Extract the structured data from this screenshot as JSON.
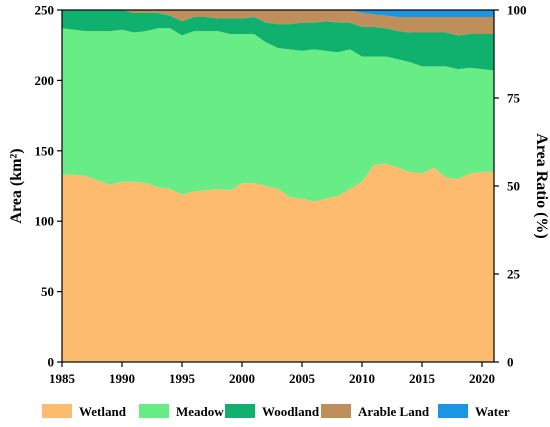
{
  "chart_data": {
    "type": "area",
    "stacked": true,
    "x": [
      1985,
      1986,
      1987,
      1988,
      1989,
      1990,
      1991,
      1992,
      1993,
      1994,
      1995,
      1996,
      1997,
      1998,
      1999,
      2000,
      2001,
      2002,
      2003,
      2004,
      2005,
      2006,
      2007,
      2008,
      2009,
      2010,
      2011,
      2012,
      2013,
      2014,
      2015,
      2016,
      2017,
      2018,
      2019,
      2020,
      2021
    ],
    "x_ticks": [
      "1985",
      "1990",
      "1995",
      "2000",
      "2005",
      "2010",
      "2015",
      "2020"
    ],
    "y_left_ticks": [
      "0",
      "50",
      "100",
      "150",
      "200",
      "250"
    ],
    "y_right_ticks": [
      "0",
      "25",
      "50",
      "75",
      "100"
    ],
    "ylabel_left": "Area (km²)",
    "ylabel_right": "Area Ratio (%)",
    "ylim_left": [
      0,
      250
    ],
    "ylim_right": [
      0,
      100
    ],
    "xlim": [
      1985,
      2021
    ],
    "legend_position": "bottom",
    "series": [
      {
        "name": "Wetland",
        "color": "#FDBB6F",
        "values": [
          133,
          133,
          132,
          129,
          126,
          128,
          128,
          127,
          124,
          123,
          119,
          121,
          122,
          123,
          122,
          127,
          127,
          125,
          123,
          117,
          116,
          114,
          116,
          118,
          123,
          128,
          140,
          141,
          138,
          135,
          134,
          138,
          131,
          130,
          134,
          135,
          135
        ]
      },
      {
        "name": "Meadow",
        "color": "#68EC86",
        "values": [
          104,
          103,
          103,
          106,
          109,
          108,
          106,
          108,
          113,
          114,
          113,
          114,
          113,
          112,
          111,
          106,
          106,
          102,
          100,
          105,
          105,
          108,
          105,
          102,
          99,
          89,
          77,
          76,
          77,
          78,
          76,
          72,
          79,
          78,
          75,
          73,
          72
        ]
      },
      {
        "name": "Woodland",
        "color": "#10B16E",
        "values": [
          13,
          14,
          15,
          15,
          15,
          14,
          14,
          13,
          11,
          9,
          10,
          10,
          10,
          9,
          11,
          11,
          12,
          14,
          17,
          18,
          20,
          19,
          21,
          21,
          19,
          21,
          21,
          20,
          20,
          21,
          24,
          24,
          24,
          24,
          24,
          25,
          26
        ]
      },
      {
        "name": "Arable Land",
        "color": "#BE8F5B",
        "values": [
          0,
          0,
          0,
          0,
          0,
          0,
          2,
          2,
          2,
          4,
          8,
          5,
          5,
          6,
          6,
          6,
          5,
          9,
          10,
          10,
          9,
          9,
          8,
          9,
          9,
          10,
          9,
          9,
          10,
          11,
          11,
          11,
          11,
          13,
          12,
          12,
          12
        ]
      },
      {
        "name": "Water",
        "color": "#1A96E2",
        "values": [
          0,
          0,
          0,
          0,
          0,
          0,
          0,
          0,
          0,
          0,
          0,
          0,
          0,
          0,
          0,
          0,
          0,
          0,
          0,
          0,
          0,
          0,
          0,
          0,
          0,
          2,
          3,
          4,
          5,
          5,
          5,
          5,
          5,
          5,
          5,
          5,
          5
        ]
      }
    ]
  }
}
